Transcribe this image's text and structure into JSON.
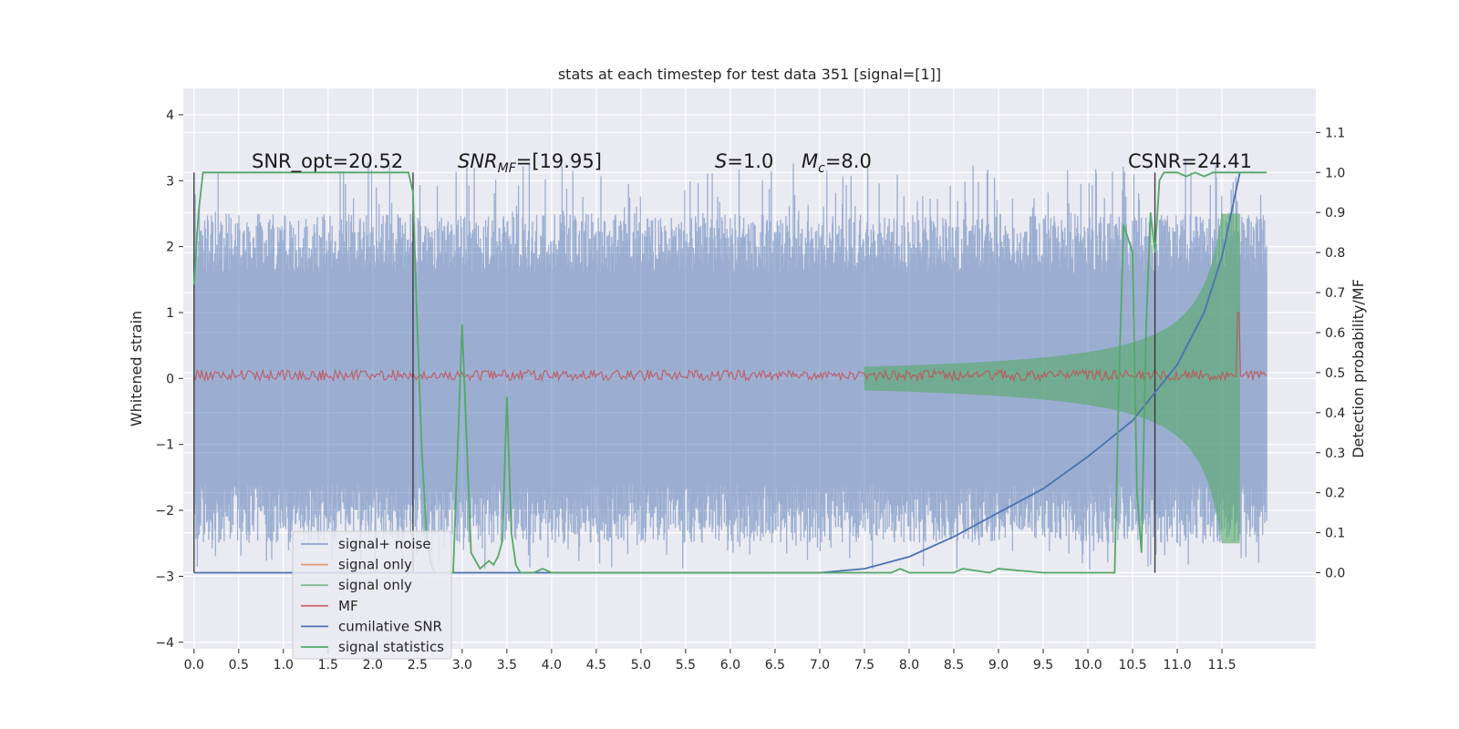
{
  "chart_data": {
    "type": "line",
    "title": "stats at each timestep for test data 351 [signal=[1]]",
    "xlabel": "",
    "ylabel": "Whitened strain",
    "ylabel_right": "Detection probability/MF",
    "xlim": [
      -0.12,
      12.55
    ],
    "ylim": [
      -4.1,
      4.4
    ],
    "ylim_right": [
      -0.19,
      1.21
    ],
    "x_ticks": [
      "0.0",
      "0.5",
      "1.0",
      "1.5",
      "2.0",
      "2.5",
      "3.0",
      "3.5",
      "4.0",
      "4.5",
      "5.0",
      "5.5",
      "6.0",
      "6.5",
      "7.0",
      "7.5",
      "8.0",
      "8.5",
      "9.0",
      "9.5",
      "10.0",
      "10.5",
      "11.0",
      "11.5"
    ],
    "y_ticks": [
      "4",
      "3",
      "2",
      "1",
      "0",
      "−1",
      "−2",
      "−3",
      "−4"
    ],
    "y_right_ticks": [
      "1.1",
      "1.0",
      "0.9",
      "0.8",
      "0.7",
      "0.6",
      "0.5",
      "0.4",
      "0.3",
      "0.2",
      "0.1",
      "0.0"
    ],
    "grid": true,
    "legend_position": "lower-left",
    "annotations": {
      "snr_opt": "SNR_opt=20.52",
      "snr_mf_sym": "SNR",
      "snr_mf_sub": "MF",
      "snr_mf_val": "=[19.95]",
      "s_sym": "S",
      "s_val": "=1.0",
      "mc_sym": "M",
      "mc_sub": "c",
      "mc_val": "=8.0",
      "csnr": "CSNR=24.41"
    },
    "vertical_lines_x": [
      0.0,
      2.45,
      10.75
    ],
    "colors": {
      "background": "#eaeaf2",
      "grid": "#ffffff",
      "signal_noise": "#4c72b0",
      "signal_only_orange": "#dd8452",
      "signal_only_green": "#55a868",
      "mf": "#c44e52",
      "cumulative_snr": "#4c72b0",
      "signal_statistics": "#55a868"
    },
    "series": [
      {
        "name": "signal+ noise",
        "axis": "left",
        "x_range": [
          0.0,
          12.0
        ],
        "envelope": [
          -2.9,
          3.3
        ],
        "core_band": [
          -1.6,
          1.6
        ]
      },
      {
        "name": "signal only",
        "axis": "left",
        "values": []
      },
      {
        "name": "signal only",
        "axis": "left",
        "x_range": [
          7.5,
          11.7
        ],
        "chirp_peak_amplitude": 2.5
      },
      {
        "name": "MF",
        "axis": "left",
        "level": 0.05,
        "peak": {
          "x": 11.68,
          "y": 1.0
        }
      },
      {
        "name": "cumilative SNR",
        "axis": "right",
        "x": [
          0.0,
          7.0,
          7.5,
          8.0,
          8.5,
          9.0,
          9.5,
          10.0,
          10.5,
          11.0,
          11.3,
          11.5,
          11.7
        ],
        "y": [
          0.0,
          0.0,
          0.01,
          0.04,
          0.09,
          0.15,
          0.21,
          0.29,
          0.38,
          0.52,
          0.65,
          0.79,
          1.0
        ]
      },
      {
        "name": "signal statistics",
        "axis": "right",
        "x": [
          0.0,
          0.05,
          0.1,
          0.2,
          2.3,
          2.4,
          2.45,
          2.5,
          2.55,
          2.6,
          2.65,
          2.7,
          2.8,
          2.9,
          3.0,
          3.1,
          3.2,
          3.3,
          3.35,
          3.4,
          3.45,
          3.5,
          3.55,
          3.6,
          3.65,
          3.8,
          3.9,
          4.0,
          4.1,
          7.8,
          7.9,
          8.0,
          8.5,
          8.6,
          8.9,
          9.0,
          9.5,
          10.2,
          10.3,
          10.35,
          10.4,
          10.5,
          10.55,
          10.6,
          10.65,
          10.7,
          10.75,
          10.8,
          10.85,
          10.9,
          11.0,
          11.1,
          11.2,
          11.3,
          11.4,
          11.6,
          12.0
        ],
        "y": [
          0.72,
          0.9,
          1.0,
          1.0,
          1.0,
          1.0,
          0.95,
          0.6,
          0.3,
          0.1,
          0.02,
          0.0,
          0.0,
          0.0,
          0.62,
          0.05,
          0.01,
          0.03,
          0.02,
          0.04,
          0.08,
          0.44,
          0.1,
          0.02,
          0.0,
          0.0,
          0.01,
          0.0,
          0.0,
          0.0,
          0.01,
          0.0,
          0.0,
          0.01,
          0.0,
          0.01,
          0.0,
          0.0,
          0.0,
          0.5,
          0.87,
          0.8,
          0.2,
          0.05,
          0.6,
          0.9,
          0.8,
          0.98,
          1.0,
          1.0,
          1.0,
          0.99,
          1.0,
          0.99,
          1.0,
          1.0,
          1.0
        ]
      }
    ],
    "legend": [
      "signal+ noise",
      "signal only",
      "signal only",
      "MF",
      "cumilative SNR",
      "signal statistics"
    ]
  }
}
